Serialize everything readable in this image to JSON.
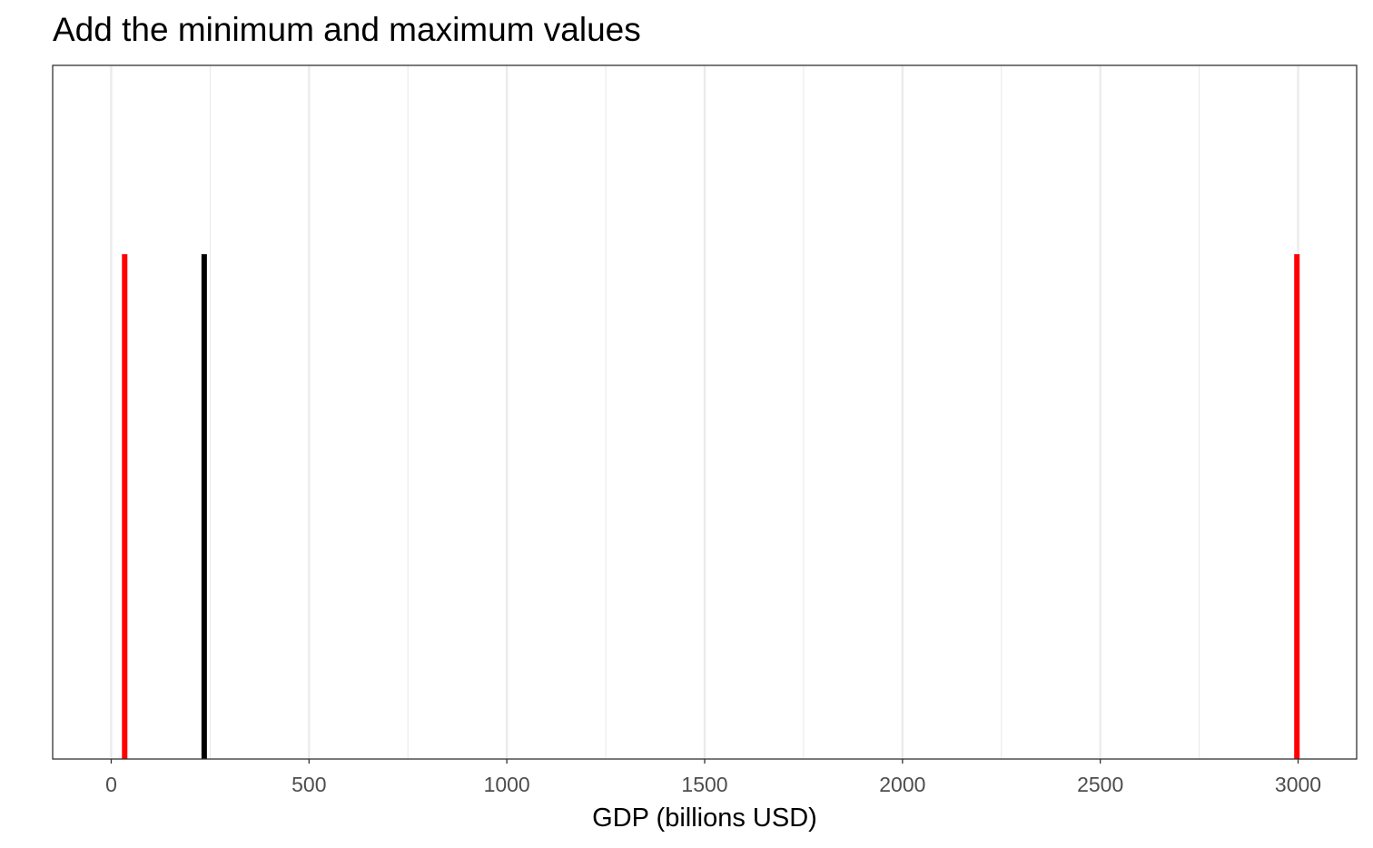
{
  "chart_data": {
    "type": "bar",
    "title": "Add the minimum and maximum values",
    "xlabel": "GDP (billions USD)",
    "ylabel": "",
    "xlim": [
      -148,
      3148
    ],
    "x_ticks": [
      0,
      500,
      1000,
      1500,
      2000,
      2500,
      3000
    ],
    "x_tick_labels": [
      "0",
      "500",
      "1000",
      "1500",
      "2000",
      "2500",
      "3000"
    ],
    "x_minor_gridlines": [
      250,
      750,
      1250,
      1750,
      2250,
      2750
    ],
    "grid": true,
    "legend": "none",
    "series": [
      {
        "values": [
          235
        ],
        "color": "#000000"
      },
      {
        "values": [
          34,
          2997
        ],
        "color": "#ff0000"
      }
    ]
  }
}
